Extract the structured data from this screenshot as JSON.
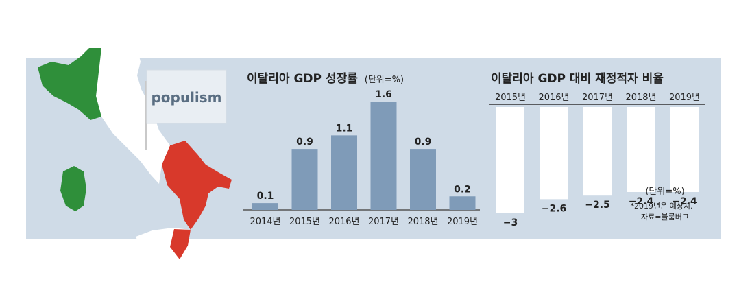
{
  "map": {
    "flag_colors": {
      "green": "#2f8f3a",
      "white": "#ffffff",
      "red": "#d8392b"
    },
    "sign_text": "populism"
  },
  "chart_data": [
    {
      "type": "bar",
      "title": "이탈리아 GDP 성장률",
      "unit_note": "(단위=%)",
      "categories": [
        "2014년",
        "2015년",
        "2016년",
        "2017년",
        "2018년",
        "2019년"
      ],
      "values": [
        0.1,
        0.9,
        1.1,
        1.6,
        0.9,
        0.2
      ],
      "value_labels": [
        "0.1",
        "0.9",
        "1.1",
        "1.6",
        "0.9",
        "0.2"
      ],
      "ylim": [
        0,
        1.6
      ],
      "bar_color": "#7f9bb8",
      "legend": "none",
      "grid": false
    },
    {
      "type": "bar",
      "title": "이탈리아 GDP 대비 재정적자 비율",
      "unit_note": "(단위=%)",
      "footnote_lines": [
        "*2019년은 예상치.",
        "자료=블룸버그"
      ],
      "categories": [
        "2015년",
        "2016년",
        "2017년",
        "2018년",
        "2019년"
      ],
      "values": [
        -3,
        -2.6,
        -2.5,
        -2.4,
        -2.4
      ],
      "value_labels": [
        "−3",
        "−2.6",
        "−2.5",
        "−2.4",
        "−2.4"
      ],
      "ylim": [
        -3,
        0
      ],
      "bar_color": "#ffffff",
      "legend": "none",
      "grid": false
    }
  ]
}
